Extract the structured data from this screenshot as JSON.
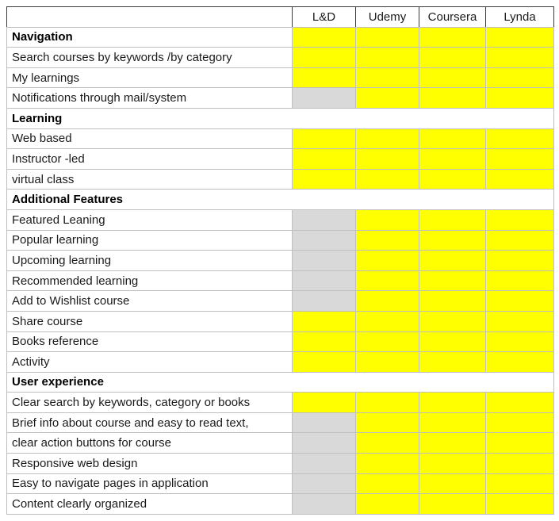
{
  "colors": {
    "highlight_yellow": "#FFFF00",
    "highlight_gray": "#D9D9D9"
  },
  "table": {
    "corner_label": "",
    "columns": [
      "L&D",
      "Udemy",
      "Coursera",
      "Lynda"
    ],
    "rows": [
      {
        "label": "Navigation",
        "section": true,
        "merged": false,
        "cells": [
          "yellow",
          "yellow",
          "yellow",
          "yellow"
        ]
      },
      {
        "label": "Search courses by keywords /by category",
        "section": false,
        "merged": false,
        "cells": [
          "yellow",
          "yellow",
          "yellow",
          "yellow"
        ]
      },
      {
        "label": "My learnings",
        "section": false,
        "merged": false,
        "cells": [
          "yellow",
          "yellow",
          "yellow",
          "yellow"
        ]
      },
      {
        "label": "Notifications through mail/system",
        "section": false,
        "merged": false,
        "cells": [
          "gray",
          "yellow",
          "yellow",
          "yellow"
        ]
      },
      {
        "label": "Learning",
        "section": true,
        "merged": true,
        "cells": []
      },
      {
        "label": "Web based",
        "section": false,
        "merged": false,
        "cells": [
          "yellow",
          "yellow",
          "yellow",
          "yellow"
        ]
      },
      {
        "label": "Instructor -led",
        "section": false,
        "merged": false,
        "cells": [
          "yellow",
          "yellow",
          "yellow",
          "yellow"
        ]
      },
      {
        "label": "virtual class",
        "section": false,
        "merged": false,
        "cells": [
          "yellow",
          "yellow",
          "yellow",
          "yellow"
        ]
      },
      {
        "label": "Additional Features",
        "section": true,
        "merged": true,
        "cells": []
      },
      {
        "label": "Featured Leaning",
        "section": false,
        "merged": false,
        "cells": [
          "gray",
          "yellow",
          "yellow",
          "yellow"
        ]
      },
      {
        "label": "Popular learning",
        "section": false,
        "merged": false,
        "cells": [
          "gray",
          "yellow",
          "yellow",
          "yellow"
        ]
      },
      {
        "label": "Upcoming learning",
        "section": false,
        "merged": false,
        "cells": [
          "gray",
          "yellow",
          "yellow",
          "yellow"
        ]
      },
      {
        "label": "Recommended learning",
        "section": false,
        "merged": false,
        "cells": [
          "gray",
          "yellow",
          "yellow",
          "yellow"
        ]
      },
      {
        "label": "Add to Wishlist course",
        "section": false,
        "merged": false,
        "cells": [
          "gray",
          "yellow",
          "yellow",
          "yellow"
        ]
      },
      {
        "label": "Share course",
        "section": false,
        "merged": false,
        "cells": [
          "yellow",
          "yellow",
          "yellow",
          "yellow"
        ]
      },
      {
        "label": "Books reference",
        "section": false,
        "merged": false,
        "cells": [
          "yellow",
          "yellow",
          "yellow",
          "yellow"
        ]
      },
      {
        "label": "Activity",
        "section": false,
        "merged": false,
        "cells": [
          "yellow",
          "yellow",
          "yellow",
          "yellow"
        ]
      },
      {
        "label": "User experience",
        "section": true,
        "merged": true,
        "cells": []
      },
      {
        "label": "Clear search by keywords, category or books",
        "section": false,
        "merged": false,
        "cells": [
          "yellow",
          "yellow",
          "yellow",
          "yellow"
        ]
      },
      {
        "label": "Brief info about course and easy to read text,",
        "section": false,
        "merged": false,
        "cells": [
          "gray",
          "yellow",
          "yellow",
          "yellow"
        ]
      },
      {
        "label": "clear action buttons for course",
        "section": false,
        "merged": false,
        "cells": [
          "gray",
          "yellow",
          "yellow",
          "yellow"
        ]
      },
      {
        "label": "Responsive web design",
        "section": false,
        "merged": false,
        "cells": [
          "gray",
          "yellow",
          "yellow",
          "yellow"
        ]
      },
      {
        "label": "Easy to navigate pages in application",
        "section": false,
        "merged": false,
        "cells": [
          "gray",
          "yellow",
          "yellow",
          "yellow"
        ]
      },
      {
        "label": "Content clearly organized",
        "section": false,
        "merged": false,
        "cells": [
          "gray",
          "yellow",
          "yellow",
          "yellow"
        ]
      }
    ]
  }
}
